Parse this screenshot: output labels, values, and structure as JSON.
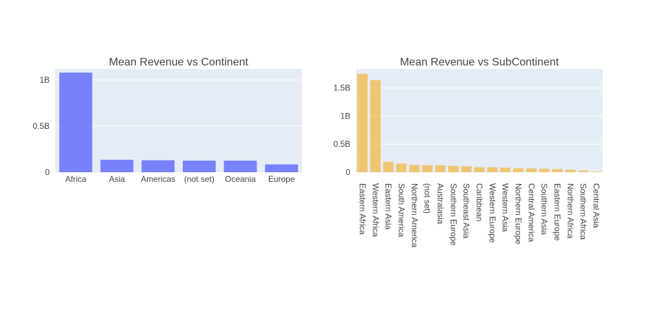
{
  "chart_data": [
    {
      "type": "bar",
      "title": "Mean Revenue vs Continent",
      "xlabel": "",
      "ylabel": "",
      "categories": [
        "Africa",
        "Asia",
        "Americas",
        "(not set)",
        "Oceania",
        "Europe"
      ],
      "values": [
        1.08,
        0.135,
        0.13,
        0.125,
        0.125,
        0.085
      ],
      "value_unit": "billions",
      "ylim": [
        0,
        1.12
      ],
      "yticks": [
        0,
        0.5,
        1
      ],
      "ytick_labels": [
        "0",
        "0.5B",
        "1B"
      ],
      "grid": true,
      "bar_color": "#636efa"
    },
    {
      "type": "bar",
      "title": "Mean Revenue vs SubContinent",
      "xlabel": "",
      "ylabel": "",
      "categories": [
        "Eastern Africa",
        "Western Africa",
        "Eastern Asia",
        "South America",
        "Northern America",
        "(not set)",
        "Australasia",
        "Southern Europe",
        "Southeast Asia",
        "Caribbean",
        "Western Europe",
        "Western Asia",
        "Northern Europe",
        "Central America",
        "Southern Asia",
        "Eastern Europe",
        "Northern Africa",
        "Southern Africa",
        "Central Asia"
      ],
      "values": [
        1.75,
        1.64,
        0.185,
        0.155,
        0.13,
        0.125,
        0.12,
        0.115,
        0.105,
        0.09,
        0.088,
        0.08,
        0.072,
        0.068,
        0.062,
        0.058,
        0.045,
        0.028,
        0.012
      ],
      "value_unit": "billions",
      "ylim": [
        0,
        1.84
      ],
      "yticks": [
        0,
        0.5,
        1,
        1.5
      ],
      "ytick_labels": [
        "0",
        "0.5B",
        "1B",
        "1.5B"
      ],
      "grid": true,
      "bar_color": "#f0c05a"
    }
  ]
}
